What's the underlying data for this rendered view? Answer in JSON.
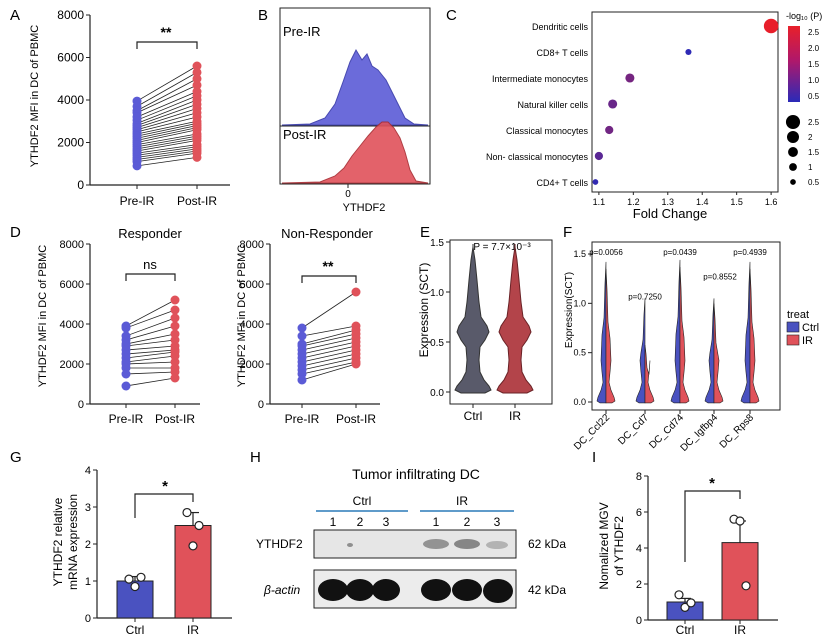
{
  "panel_labels": {
    "A": "A",
    "B": "B",
    "C": "C",
    "D": "D",
    "E": "E",
    "F": "F",
    "G": "G",
    "H": "H",
    "I": "I"
  },
  "colors": {
    "pre": "#5b5bd6",
    "post": "#e0525a",
    "ctrl_bar": "#4a52c0",
    "ir_bar": "#e0525a",
    "line": "#222222"
  },
  "chart_data": [
    {
      "panel": "A",
      "type": "scatter",
      "ylabel": "YTHDF2 MFI in DC of PBMC",
      "categories": [
        "Pre-IR",
        "Post-IR"
      ],
      "ylim": [
        0,
        8000
      ],
      "yticks": [
        "0",
        "2000",
        "4000",
        "6000",
        "8000"
      ],
      "significance": "**",
      "pre": [
        3950,
        3700,
        3500,
        3400,
        3200,
        3050,
        2900,
        2800,
        2700,
        2600,
        2500,
        2400,
        2300,
        2200,
        2100,
        2000,
        1900,
        1800,
        1700,
        1600,
        1500,
        1400,
        1300,
        1200,
        1100,
        900
      ],
      "post": [
        5600,
        5300,
        5000,
        4700,
        4400,
        4200,
        4000,
        3800,
        3600,
        3400,
        3200,
        3000,
        2900,
        2800,
        2700,
        2600,
        2400,
        2300,
        2200,
        2100,
        1900,
        1800,
        1700,
        1600,
        1500,
        1300
      ]
    },
    {
      "panel": "B",
      "type": "area",
      "series": [
        {
          "name": "Pre-IR"
        },
        {
          "name": "Post-IR"
        }
      ],
      "xtick": "0",
      "xlabel": "YTHDF2"
    },
    {
      "panel": "C",
      "type": "scatter",
      "categories": [
        "Dendritic cells",
        "CD8+ T cells",
        "Intermediate monocytes",
        "Natural killer cells",
        "Classical monocytes",
        "Non- classical monocytes",
        "CD4+ T cells"
      ],
      "fold_change": [
        1.6,
        1.36,
        1.19,
        1.14,
        1.13,
        1.1,
        1.09
      ],
      "neg_log10_p": [
        2.7,
        0.35,
        1.25,
        1.1,
        1.2,
        0.9,
        0.4
      ],
      "size_values": [
        2.6,
        0.6,
        1.3,
        1.3,
        1.1,
        1.1,
        0.5
      ],
      "xlabel": "Fold Change",
      "xticks": [
        "1.1",
        "1.2",
        "1.3",
        "1.4",
        "1.5",
        "1.6"
      ],
      "xlim": [
        1.08,
        1.62
      ],
      "color_legend_title": "-log₁₀ (P)",
      "color_ticks": [
        "2.5",
        "2.0",
        "1.5",
        "1.0",
        "0.5"
      ],
      "size_ticks": [
        "2.5",
        "2",
        "1.5",
        "1",
        "0.5"
      ]
    },
    {
      "panel": "D1",
      "type": "scatter",
      "title": "Responder",
      "ylabel": "YTHDF2 MFI in DC of PBMC",
      "categories": [
        "Pre-IR",
        "Post-IR"
      ],
      "ylim": [
        0,
        8000
      ],
      "yticks": [
        "0",
        "2000",
        "4000",
        "6000",
        "8000"
      ],
      "significance": "ns",
      "pre": [
        3900,
        3800,
        3400,
        3200,
        3000,
        2900,
        2700,
        2500,
        2300,
        2100,
        2000,
        1800,
        1500,
        900
      ],
      "post": [
        5200,
        4700,
        4300,
        3900,
        3500,
        3200,
        2900,
        2700,
        2600,
        2400,
        2100,
        1800,
        1600,
        1300
      ]
    },
    {
      "panel": "D2",
      "type": "scatter",
      "title": "Non-Responder",
      "ylabel": "YTHDF2 MFI in DC of PBMC",
      "categories": [
        "Pre-IR",
        "Post-IR"
      ],
      "ylim": [
        0,
        8000
      ],
      "yticks": [
        "0",
        "2000",
        "4000",
        "6000",
        "8000"
      ],
      "significance": "**",
      "pre": [
        3800,
        3400,
        3000,
        2900,
        2700,
        2500,
        2300,
        2100,
        1900,
        1700,
        1500,
        1200
      ],
      "post": [
        5600,
        3900,
        3700,
        3500,
        3300,
        3100,
        2900,
        2700,
        2500,
        2300,
        2100,
        2000
      ]
    },
    {
      "panel": "E",
      "type": "violin",
      "ylabel": "Expression (SCT)",
      "categories": [
        "Ctrl",
        "IR"
      ],
      "ylim": [
        0,
        1.5
      ],
      "yticks": [
        "0.0",
        "0.5",
        "1.0",
        "1.5"
      ],
      "pvalue": "P = 7.7×10⁻³"
    },
    {
      "panel": "F",
      "type": "violin",
      "ylabel": "Expression(SCT)",
      "categories": [
        "DC_Ccl22",
        "DC_Cd7",
        "DC_Cd74",
        "DC_Igfbp4",
        "DC_Rps8"
      ],
      "pvalues": [
        "p=0.0056",
        "p=0.7250",
        "p=0.0439",
        "p=0.8552",
        "p=0.4939"
      ],
      "ylim": [
        0,
        1.5
      ],
      "yticks": [
        "0.0",
        "0.5",
        "1.0",
        "1.5"
      ],
      "legend_title": "treat",
      "legend": [
        "Ctrl",
        "IR"
      ]
    },
    {
      "panel": "G",
      "type": "bar",
      "ylabel_lines": [
        "YTHDF2 relative",
        "mRNA expression"
      ],
      "categories": [
        "Ctrl",
        "IR"
      ],
      "values": [
        1.0,
        2.5
      ],
      "errors": [
        0.12,
        0.35
      ],
      "points": [
        [
          1.05,
          0.85,
          1.1
        ],
        [
          2.85,
          1.95,
          2.5
        ]
      ],
      "ylim": [
        0,
        4
      ],
      "yticks": [
        "0",
        "1",
        "2",
        "3",
        "4"
      ],
      "significance": "*"
    },
    {
      "panel": "I",
      "type": "bar",
      "ylabel_lines": [
        "Nomalized MGV",
        "of YTHDF2"
      ],
      "categories": [
        "Ctrl",
        "IR"
      ],
      "values": [
        1.0,
        4.3
      ],
      "errors": [
        0.2,
        1.2
      ],
      "points": [
        [
          1.4,
          0.7,
          0.95
        ],
        [
          5.6,
          5.5,
          1.9
        ]
      ],
      "ylim": [
        0,
        8
      ],
      "yticks": [
        "0",
        "2",
        "4",
        "6",
        "8"
      ],
      "significance": "*"
    }
  ],
  "western": {
    "title": "Tumor infiltrating DC",
    "group_ctrl": "Ctrl",
    "group_ir": "IR",
    "lanes": [
      "1",
      "2",
      "3",
      "1",
      "2",
      "3"
    ],
    "rows": [
      {
        "label": "YTHDF2",
        "kda": "62 kDa"
      },
      {
        "label": "β-actin",
        "kda": "42 kDa"
      }
    ]
  }
}
